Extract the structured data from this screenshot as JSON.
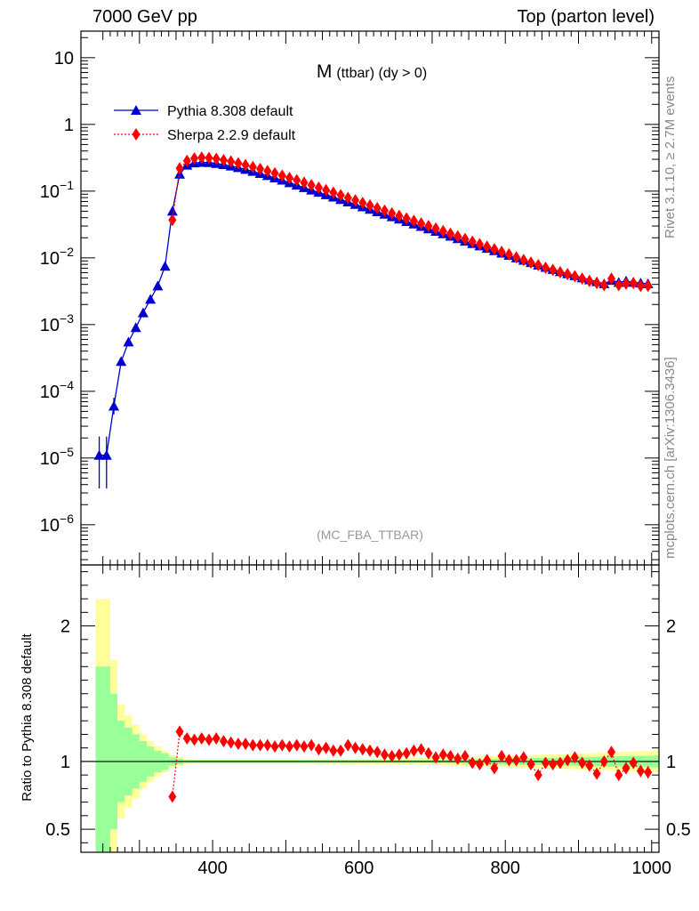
{
  "header": {
    "left": "7000 GeV pp",
    "right": "Top (parton level)"
  },
  "side_labels": {
    "rivet": "Rivet 3.1.10, ≥ 2.7M events",
    "mcplots": "mcplots.cern.ch [arXiv:1306.3436]"
  },
  "chart_data": {
    "type": "line",
    "title": "M (ttbar) (dy > 0)",
    "title_main": "M",
    "title_sub": "(ttbar) (dy > 0)",
    "watermark": "(MC_FBA_TTBAR)",
    "xlim": [
      220,
      1010
    ],
    "x_ticks": [
      400,
      600,
      800,
      1000
    ],
    "top_panel": {
      "scale": "log",
      "ylim": [
        2.5e-07,
        25
      ],
      "y_tick_labels": [
        {
          "value": 10,
          "label": "10"
        },
        {
          "value": 1,
          "label": "1"
        },
        {
          "value": 0.1,
          "label": "10",
          "exp": "−1"
        },
        {
          "value": 0.01,
          "label": "10",
          "exp": "−2"
        },
        {
          "value": 0.001,
          "label": "10",
          "exp": "−3"
        },
        {
          "value": 0.0001,
          "label": "10",
          "exp": "−4"
        },
        {
          "value": 1e-05,
          "label": "10",
          "exp": "−5"
        },
        {
          "value": 1e-06,
          "label": "10",
          "exp": "−6"
        }
      ]
    },
    "ratio_panel": {
      "ylabel": "Ratio to Pythia 8.308 default",
      "ylim": [
        0.33,
        2.45
      ],
      "y_tick_labels": [
        {
          "value": 0.5,
          "label": "0.5"
        },
        {
          "value": 1,
          "label": "1"
        },
        {
          "value": 2,
          "label": "2"
        }
      ]
    },
    "legend_position": "top-left",
    "series": [
      {
        "name": "Pythia 8.308 default",
        "color": "#0000cc",
        "marker": "triangle",
        "line": "solid",
        "x": [
          245,
          255,
          265,
          275,
          285,
          295,
          305,
          315,
          325,
          335,
          345,
          355,
          365,
          375,
          385,
          395,
          405,
          415,
          425,
          435,
          445,
          455,
          465,
          475,
          485,
          495,
          505,
          515,
          525,
          535,
          545,
          555,
          565,
          575,
          585,
          595,
          605,
          615,
          625,
          635,
          645,
          655,
          665,
          675,
          685,
          695,
          705,
          715,
          725,
          735,
          745,
          755,
          765,
          775,
          785,
          795,
          805,
          815,
          825,
          835,
          845,
          855,
          865,
          875,
          885,
          895,
          905,
          915,
          925,
          935,
          945,
          955,
          965,
          975,
          985,
          995
        ],
        "y": [
          1.1e-05,
          1.1e-05,
          6e-05,
          0.00028,
          0.00055,
          0.0009,
          0.0015,
          0.0024,
          0.0038,
          0.0075,
          0.05,
          0.18,
          0.245,
          0.265,
          0.27,
          0.268,
          0.26,
          0.25,
          0.238,
          0.225,
          0.212,
          0.198,
          0.184,
          0.171,
          0.158,
          0.146,
          0.134,
          0.123,
          0.113,
          0.104,
          0.096,
          0.0885,
          0.0815,
          0.0749,
          0.0688,
          0.0632,
          0.0581,
          0.0534,
          0.0491,
          0.0451,
          0.0414,
          0.0381,
          0.035,
          0.0322,
          0.0296,
          0.0272,
          0.025,
          0.023,
          0.0211,
          0.0194,
          0.0178,
          0.0164,
          0.0151,
          0.0139,
          0.0128,
          0.0118,
          0.0109,
          0.01,
          0.0092,
          0.0085,
          0.0078,
          0.0072,
          0.0067,
          0.0062,
          0.0058,
          0.0054,
          0.005,
          0.0047,
          0.0044,
          0.0041,
          0.0046,
          0.0043,
          0.0045,
          0.0043,
          0.0042,
          0.0041
        ],
        "yerr_low": [
          7.5e-06,
          7.5e-06,
          1.5e-05
        ],
        "yerr_high": [
          1e-05,
          1e-05,
          2e-05
        ]
      },
      {
        "name": "Sherpa 2.2.9 default",
        "color": "#ff0000",
        "marker": "diamond",
        "line": "dotted",
        "x": [
          345,
          355,
          365,
          375,
          385,
          395,
          405,
          415,
          425,
          435,
          445,
          455,
          465,
          475,
          485,
          495,
          505,
          515,
          525,
          535,
          545,
          555,
          565,
          575,
          585,
          595,
          605,
          615,
          625,
          635,
          645,
          655,
          665,
          675,
          685,
          695,
          705,
          715,
          725,
          735,
          745,
          755,
          765,
          775,
          785,
          795,
          805,
          815,
          825,
          835,
          845,
          855,
          865,
          875,
          885,
          895,
          905,
          915,
          925,
          935,
          945,
          955,
          965,
          975,
          985,
          995
        ],
        "y": [
          0.037,
          0.22,
          0.285,
          0.31,
          0.318,
          0.315,
          0.305,
          0.292,
          0.278,
          0.262,
          0.246,
          0.23,
          0.215,
          0.2,
          0.185,
          0.171,
          0.158,
          0.146,
          0.134,
          0.123,
          0.113,
          0.104,
          0.095,
          0.087,
          0.0795,
          0.0729,
          0.0667,
          0.0611,
          0.0558,
          0.051,
          0.0466,
          0.0426,
          0.039,
          0.0358,
          0.0328,
          0.03,
          0.0275,
          0.0252,
          0.023,
          0.021,
          0.0192,
          0.0175,
          0.016,
          0.0147,
          0.0135,
          0.0123,
          0.0113,
          0.0102,
          0.0093,
          0.0085,
          0.0078,
          0.0071,
          0.0066,
          0.0061,
          0.0057,
          0.0053,
          0.0049,
          0.0045,
          0.0042,
          0.0039,
          0.0049,
          0.0039,
          0.0041,
          0.0042,
          0.0038,
          0.0038
        ]
      }
    ],
    "ratio": {
      "series": "Sherpa 2.2.9 default",
      "x": [
        345,
        355,
        365,
        375,
        385,
        395,
        405,
        415,
        425,
        435,
        445,
        455,
        465,
        475,
        485,
        495,
        505,
        515,
        525,
        535,
        545,
        555,
        565,
        575,
        585,
        595,
        605,
        615,
        625,
        635,
        645,
        655,
        665,
        675,
        685,
        695,
        705,
        715,
        725,
        735,
        745,
        755,
        765,
        775,
        785,
        795,
        805,
        815,
        825,
        835,
        845,
        855,
        865,
        875,
        885,
        895,
        905,
        915,
        925,
        935,
        945,
        955,
        965,
        975,
        985,
        995
      ],
      "y": [
        0.74,
        1.22,
        1.17,
        1.16,
        1.17,
        1.16,
        1.17,
        1.15,
        1.14,
        1.13,
        1.13,
        1.12,
        1.12,
        1.12,
        1.11,
        1.12,
        1.11,
        1.12,
        1.11,
        1.12,
        1.09,
        1.1,
        1.08,
        1.08,
        1.12,
        1.1,
        1.09,
        1.08,
        1.07,
        1.05,
        1.04,
        1.05,
        1.06,
        1.08,
        1.09,
        1.06,
        1.03,
        1.05,
        1.04,
        1.02,
        1.04,
        0.99,
        0.98,
        1.01,
        0.95,
        1.04,
        1.01,
        1.01,
        1.03,
        0.98,
        0.9,
        0.99,
        0.98,
        0.99,
        1.01,
        1.03,
        0.99,
        0.97,
        0.91,
        1.0,
        1.07,
        0.9,
        0.95,
        0.99,
        0.93,
        0.92
      ],
      "err": [
        0.01,
        0.01,
        0.01,
        0.01,
        0.01,
        0.01,
        0.01,
        0.01,
        0.01,
        0.01,
        0.01,
        0.01,
        0.01,
        0.01,
        0.01,
        0.01,
        0.01,
        0.01,
        0.01,
        0.01,
        0.01,
        0.01,
        0.01,
        0.01,
        0.01,
        0.01,
        0.01,
        0.01,
        0.01,
        0.01,
        0.01,
        0.01,
        0.01,
        0.01,
        0.01,
        0.01,
        0.01,
        0.015,
        0.015,
        0.015,
        0.015,
        0.015,
        0.015,
        0.02,
        0.02,
        0.02,
        0.02,
        0.02,
        0.02,
        0.03,
        0.03,
        0.03,
        0.03,
        0.03,
        0.03,
        0.03,
        0.03,
        0.035,
        0.035,
        0.035,
        0.04,
        0.04,
        0.04,
        0.04,
        0.045,
        0.045
      ],
      "band_x": [
        240,
        250,
        260,
        270,
        280,
        290,
        300,
        310,
        320,
        330,
        340,
        350,
        360,
        370,
        380,
        390,
        400,
        420,
        440,
        460,
        480,
        500,
        520,
        540,
        560,
        580,
        600,
        620,
        640,
        660,
        680,
        700,
        720,
        740,
        760,
        780,
        800,
        820,
        840,
        860,
        880,
        900,
        920,
        940,
        960,
        980,
        1000
      ],
      "band_inner": [
        0.7,
        0.7,
        0.5,
        0.3,
        0.25,
        0.2,
        0.15,
        0.11,
        0.08,
        0.06,
        0.03,
        0.02,
        0.01,
        0.01,
        0.01,
        0.01,
        0.01,
        0.01,
        0.01,
        0.01,
        0.01,
        0.01,
        0.01,
        0.01,
        0.01,
        0.01,
        0.01,
        0.01,
        0.01,
        0.01,
        0.01,
        0.012,
        0.014,
        0.016,
        0.018,
        0.02,
        0.022,
        0.024,
        0.026,
        0.028,
        0.03,
        0.033,
        0.035,
        0.038,
        0.04,
        0.042,
        0.045
      ],
      "band_outer": [
        1.2,
        1.2,
        0.75,
        0.42,
        0.34,
        0.27,
        0.2,
        0.15,
        0.11,
        0.08,
        0.045,
        0.03,
        0.02,
        0.015,
        0.015,
        0.015,
        0.015,
        0.015,
        0.015,
        0.015,
        0.015,
        0.015,
        0.016,
        0.017,
        0.018,
        0.019,
        0.02,
        0.021,
        0.022,
        0.024,
        0.026,
        0.028,
        0.03,
        0.033,
        0.036,
        0.04,
        0.043,
        0.046,
        0.05,
        0.053,
        0.056,
        0.06,
        0.064,
        0.068,
        0.072,
        0.076,
        0.08
      ]
    }
  }
}
